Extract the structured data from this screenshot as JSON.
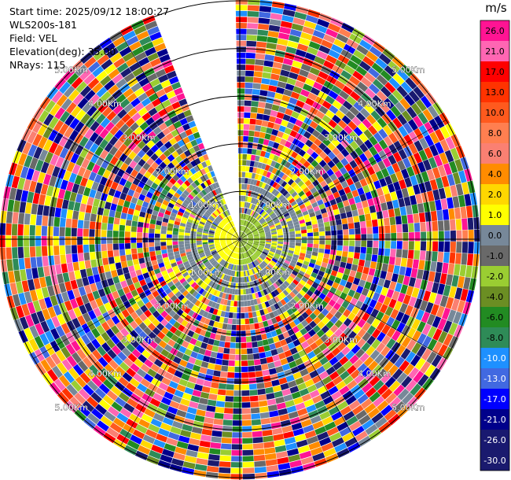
{
  "info": {
    "start_time_label": "Start time:",
    "start_time": "2025/09/12 18:00:27",
    "instrument": "WLS200s-181",
    "field_label": "Field:",
    "field": "VEL",
    "elevation_label": "Elevation(deg):",
    "elevation": "35.00",
    "nrays_label": "NRays:",
    "nrays": "115"
  },
  "chart_data": {
    "type": "ppi-polar",
    "field": "VEL",
    "units": "m/s",
    "range_rings_km": [
      1.0,
      2.0,
      3.0,
      4.0,
      5.0
    ],
    "range_ring_labels": [
      "1.00Km",
      "2.00Km",
      "3.00Km",
      "4.00Km",
      "5.00Km"
    ],
    "max_range_km": 5.0,
    "gap_azimuth_deg": [
      339,
      359
    ],
    "colorbar": {
      "min": -30.0,
      "max": 30.0,
      "ticks": [
        "26.0",
        "21.0",
        "17.0",
        "13.0",
        "10.0",
        "8.0",
        "6.0",
        "4.0",
        "2.0",
        "1.0",
        "0.0",
        "-1.0",
        "-2.0",
        "-4.0",
        "-6.0",
        "-8.0",
        "-10.0",
        "-13.0",
        "-17.0",
        "-21.0",
        "-26.0",
        "-30.0"
      ],
      "colors": [
        "#ff1493",
        "#ff66b3",
        "#ff0000",
        "#ff3300",
        "#ff5a1e",
        "#ff7f50",
        "#fa8072",
        "#ff8c00",
        "#ffd700",
        "#ffff00",
        "#778899",
        "#696969",
        "#9acd32",
        "#6b8e23",
        "#228b22",
        "#2e8b57",
        "#1e90ff",
        "#4169e1",
        "#0000ff",
        "#00008b",
        "#191970",
        "#1a1a6e"
      ]
    }
  }
}
